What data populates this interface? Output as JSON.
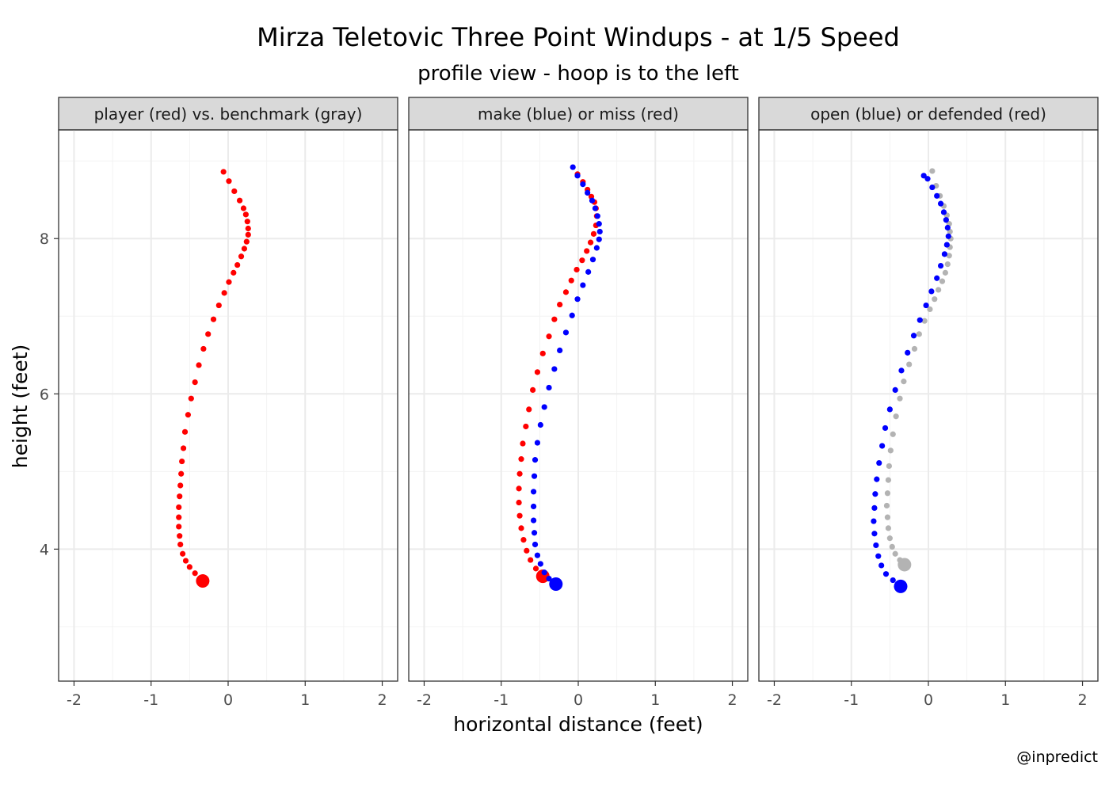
{
  "title": "Mirza Teletovic Three Point Windups - at 1/5 Speed",
  "subtitle": "profile view - hoop is to the left",
  "xlabel": "horizontal distance (feet)",
  "ylabel": "height (feet)",
  "credit": "@inpredict",
  "colors": {
    "red": "#ff0000",
    "blue": "#0000ff",
    "gray": "#b3b3b3",
    "strip_bg": "#d9d9d9",
    "grid": "#ebebeb",
    "panel_border": "#333333"
  },
  "chart_data": [
    {
      "type": "scatter",
      "panel": "player (red) vs. benchmark (gray)",
      "xlim": [
        -2.2,
        2.2
      ],
      "ylim": [
        2.3,
        9.4
      ],
      "xticks": [
        -2,
        -1,
        0,
        1,
        2
      ],
      "xtick_labels": [
        "-2",
        "-1",
        "0",
        "1",
        "2"
      ],
      "yticks": [
        4,
        6,
        8
      ],
      "ytick_labels": [
        "4",
        "6",
        "8"
      ],
      "grid": true,
      "series": [
        {
          "color": "red",
          "x": [
            -0.33,
            -0.43,
            -0.5,
            -0.55,
            -0.59,
            -0.62,
            -0.63,
            -0.64,
            -0.64,
            -0.64,
            -0.63,
            -0.62,
            -0.61,
            -0.6,
            -0.58,
            -0.56,
            -0.52,
            -0.48,
            -0.43,
            -0.38,
            -0.32,
            -0.26,
            -0.19,
            -0.12,
            -0.05,
            0.01,
            0.07,
            0.12,
            0.17,
            0.21,
            0.24,
            0.26,
            0.26,
            0.25,
            0.23,
            0.2,
            0.15,
            0.08,
            0.01,
            -0.06
          ],
          "y": [
            3.59,
            3.69,
            3.77,
            3.85,
            3.94,
            4.06,
            4.17,
            4.29,
            4.41,
            4.54,
            4.68,
            4.82,
            4.97,
            5.13,
            5.3,
            5.51,
            5.73,
            5.94,
            6.15,
            6.37,
            6.58,
            6.77,
            6.96,
            7.14,
            7.3,
            7.44,
            7.56,
            7.66,
            7.77,
            7.87,
            7.96,
            8.05,
            8.13,
            8.22,
            8.31,
            8.39,
            8.49,
            8.61,
            8.74,
            8.86
          ]
        }
      ]
    },
    {
      "type": "scatter",
      "panel": "make (blue) or miss (red)",
      "xlim": [
        -2.2,
        2.2
      ],
      "ylim": [
        2.3,
        9.4
      ],
      "xticks": [
        -2,
        -1,
        0,
        1,
        2
      ],
      "xtick_labels": [
        "-2",
        "-1",
        "0",
        "1",
        "2"
      ],
      "yticks": [
        4,
        6,
        8
      ],
      "ytick_labels": [
        "4",
        "6",
        "8"
      ],
      "grid": true,
      "series": [
        {
          "color": "red",
          "x": [
            -0.46,
            -0.55,
            -0.62,
            -0.67,
            -0.71,
            -0.74,
            -0.76,
            -0.77,
            -0.77,
            -0.76,
            -0.74,
            -0.72,
            -0.68,
            -0.64,
            -0.59,
            -0.53,
            -0.46,
            -0.38,
            -0.31,
            -0.24,
            -0.16,
            -0.09,
            -0.02,
            0.05,
            0.11,
            0.16,
            0.2,
            0.23,
            0.24,
            0.23,
            0.21,
            0.17,
            0.12,
            0.06,
            -0.01
          ],
          "y": [
            3.65,
            3.75,
            3.86,
            3.98,
            4.12,
            4.27,
            4.43,
            4.6,
            4.78,
            4.97,
            5.16,
            5.36,
            5.58,
            5.8,
            6.05,
            6.28,
            6.52,
            6.74,
            6.96,
            7.15,
            7.31,
            7.46,
            7.6,
            7.72,
            7.84,
            7.95,
            8.06,
            8.17,
            8.29,
            8.39,
            8.47,
            8.54,
            8.63,
            8.73,
            8.83
          ]
        },
        {
          "color": "blue",
          "x": [
            -0.29,
            -0.38,
            -0.44,
            -0.49,
            -0.53,
            -0.56,
            -0.57,
            -0.58,
            -0.58,
            -0.58,
            -0.57,
            -0.56,
            -0.53,
            -0.49,
            -0.44,
            -0.38,
            -0.31,
            -0.24,
            -0.16,
            -0.08,
            -0.01,
            0.06,
            0.13,
            0.19,
            0.24,
            0.27,
            0.28,
            0.27,
            0.25,
            0.22,
            0.18,
            0.12,
            0.06,
            -0.01,
            -0.07
          ],
          "y": [
            3.55,
            3.62,
            3.7,
            3.81,
            3.92,
            4.06,
            4.21,
            4.37,
            4.55,
            4.74,
            4.94,
            5.15,
            5.37,
            5.6,
            5.83,
            6.08,
            6.32,
            6.56,
            6.79,
            7.01,
            7.22,
            7.4,
            7.57,
            7.73,
            7.88,
            7.99,
            8.09,
            8.19,
            8.29,
            8.39,
            8.49,
            8.59,
            8.7,
            8.81,
            8.92
          ]
        }
      ]
    },
    {
      "type": "scatter",
      "panel": "open (blue) or defended (red)",
      "xlim": [
        -2.2,
        2.2
      ],
      "ylim": [
        2.3,
        9.4
      ],
      "xticks": [
        -2,
        -1,
        0,
        1,
        2
      ],
      "xtick_labels": [
        "-2",
        "-1",
        "0",
        "1",
        "2"
      ],
      "yticks": [
        4,
        6,
        8
      ],
      "ytick_labels": [
        "4",
        "6",
        "8"
      ],
      "grid": true,
      "series": [
        {
          "color": "gray",
          "x": [
            -0.31,
            -0.37,
            -0.43,
            -0.47,
            -0.5,
            -0.52,
            -0.53,
            -0.54,
            -0.53,
            -0.52,
            -0.51,
            -0.49,
            -0.46,
            -0.42,
            -0.37,
            -0.32,
            -0.25,
            -0.18,
            -0.12,
            -0.05,
            0.02,
            0.08,
            0.13,
            0.18,
            0.22,
            0.25,
            0.27,
            0.28,
            0.29,
            0.28,
            0.27,
            0.24,
            0.2,
            0.15,
            0.1,
            0.05
          ],
          "y": [
            3.8,
            3.86,
            3.94,
            4.03,
            4.14,
            4.27,
            4.41,
            4.56,
            4.72,
            4.89,
            5.07,
            5.27,
            5.48,
            5.71,
            5.94,
            6.16,
            6.38,
            6.58,
            6.77,
            6.94,
            7.09,
            7.22,
            7.34,
            7.45,
            7.56,
            7.67,
            7.78,
            7.89,
            8.0,
            8.09,
            8.19,
            8.3,
            8.42,
            8.55,
            8.68,
            8.87
          ]
        },
        {
          "color": "blue",
          "x": [
            -0.36,
            -0.46,
            -0.55,
            -0.61,
            -0.65,
            -0.68,
            -0.7,
            -0.71,
            -0.7,
            -0.69,
            -0.67,
            -0.64,
            -0.6,
            -0.56,
            -0.5,
            -0.43,
            -0.35,
            -0.27,
            -0.19,
            -0.11,
            -0.03,
            0.04,
            0.11,
            0.16,
            0.21,
            0.24,
            0.26,
            0.25,
            0.23,
            0.2,
            0.16,
            0.11,
            0.05,
            -0.01,
            -0.06
          ],
          "y": [
            3.52,
            3.6,
            3.68,
            3.79,
            3.91,
            4.05,
            4.2,
            4.36,
            4.53,
            4.71,
            4.9,
            5.11,
            5.33,
            5.56,
            5.8,
            6.05,
            6.3,
            6.53,
            6.75,
            6.95,
            7.14,
            7.32,
            7.49,
            7.65,
            7.8,
            7.92,
            8.03,
            8.14,
            8.24,
            8.34,
            8.45,
            8.55,
            8.66,
            8.77,
            8.81
          ]
        }
      ]
    }
  ]
}
